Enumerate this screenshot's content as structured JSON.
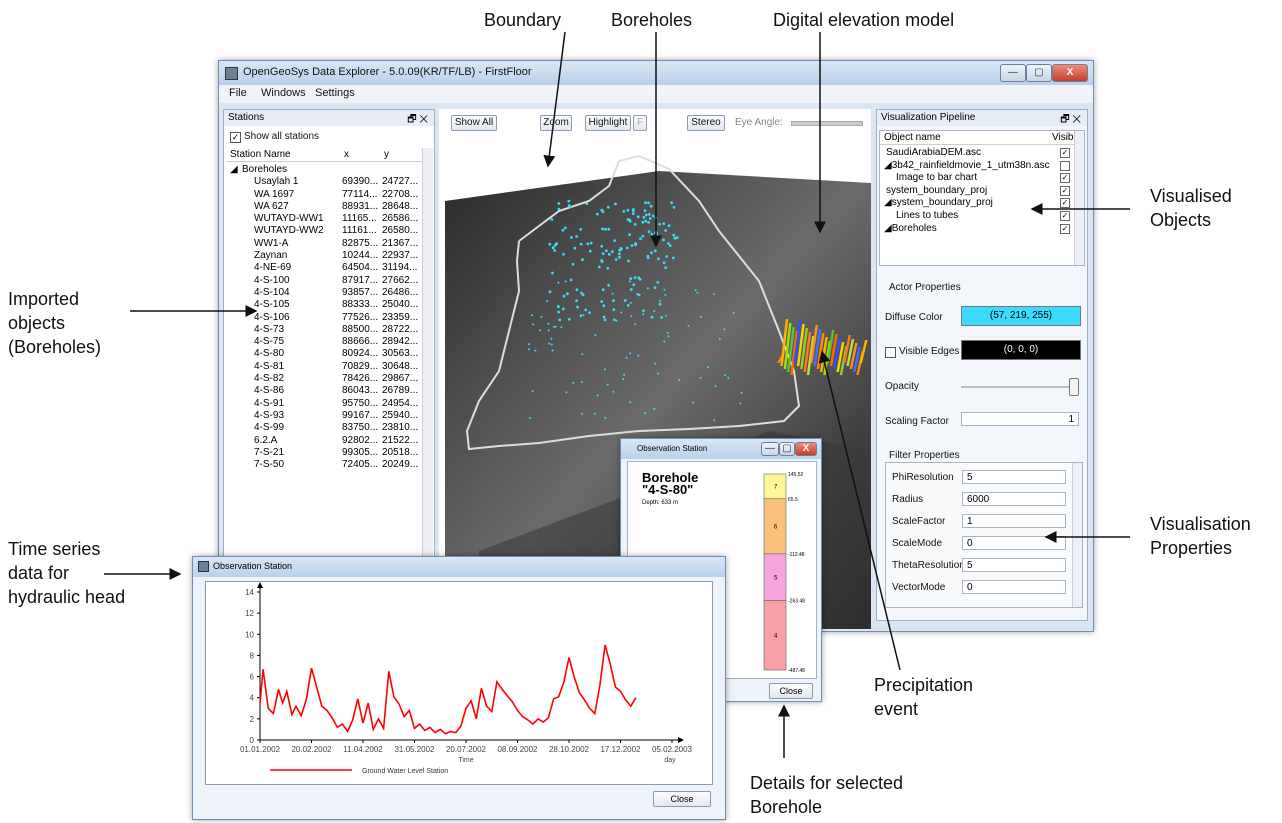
{
  "callouts": {
    "boundary": "Boundary",
    "boreholes": "Boreholes",
    "dem": "Digital elevation model",
    "imported": [
      "Imported",
      "objects",
      "(Boreholes)"
    ],
    "visualised": [
      "Visualised",
      "Objects"
    ],
    "timeseries": [
      "Time series",
      "data for",
      "hydraulic head"
    ],
    "vis_props": [
      "Visualisation",
      "Properties"
    ],
    "precip": [
      "Precipitation",
      "event"
    ],
    "details": [
      "Details for selected",
      "Borehole"
    ]
  },
  "window": {
    "title": "OpenGeoSys Data Explorer - 5.0.09(KR/TF/LB) - FirstFloor",
    "controls": [
      "—",
      "▢",
      "X"
    ],
    "menu": [
      "File",
      "Windows",
      "Settings"
    ]
  },
  "stations": {
    "title": "Stations",
    "title_icons": "🗗 ✕",
    "show_all": "Show all stations",
    "columns": [
      "Station Name",
      "x",
      "y"
    ],
    "group": "Boreholes",
    "rows": [
      [
        "Usaylah 1",
        "69390...",
        "24727..."
      ],
      [
        "WA 1697",
        "77114...",
        "22708..."
      ],
      [
        "WA 627",
        "88931...",
        "28648..."
      ],
      [
        "WUTAYD-WW1",
        "11165...",
        "26586..."
      ],
      [
        "WUTAYD-WW2",
        "11161...",
        "26580..."
      ],
      [
        "WW1-A",
        "82875...",
        "21367..."
      ],
      [
        "Zaynan",
        "10244...",
        "22937..."
      ],
      [
        "4-NE-69",
        "64504...",
        "31194..."
      ],
      [
        "4-S-100",
        "87917...",
        "27662..."
      ],
      [
        "4-S-104",
        "93857...",
        "26486..."
      ],
      [
        "4-S-105",
        "88333...",
        "25040..."
      ],
      [
        "4-S-106",
        "77526...",
        "23359..."
      ],
      [
        "4-S-73",
        "88500...",
        "28722..."
      ],
      [
        "4-S-75",
        "88666...",
        "28942..."
      ],
      [
        "4-S-80",
        "80924...",
        "30563..."
      ],
      [
        "4-S-81",
        "70829...",
        "30648..."
      ],
      [
        "4-S-82",
        "78426...",
        "29867..."
      ],
      [
        "4-S-86",
        "86043...",
        "26789..."
      ],
      [
        "4-S-91",
        "95750...",
        "24954..."
      ],
      [
        "4-S-93",
        "99167...",
        "25940..."
      ],
      [
        "4-S-99",
        "83750...",
        "23810..."
      ],
      [
        "6.2.A",
        "92802...",
        "21522..."
      ],
      [
        "7-S-21",
        "99305...",
        "20518..."
      ],
      [
        "7-S-50",
        "72405...",
        "20249..."
      ]
    ]
  },
  "toolbar": {
    "show_all": "Show All",
    "zoom": "Zoom",
    "highlight": "Highlight",
    "f": "F",
    "stereo": "Stereo",
    "eye_angle": "Eye Angle:"
  },
  "pipeline": {
    "title": "Visualization Pipeline",
    "title_icons": "🗗 ✕",
    "col_name": "Object name",
    "col_visible": "Visib",
    "objects": [
      "SaudiArabiaDEM.asc",
      "◢3b42_rainfieldmovie_1_utm38n.asc",
      "Image to bar chart",
      "system_boundary_proj",
      "◢system_boundary_proj",
      "Lines to tubes",
      "◢Boreholes"
    ],
    "actor_props": "Actor Properties",
    "diffuse_label": "Diffuse Color",
    "diffuse_value": "(57, 219, 255)",
    "diffuse_color": "#39dbff",
    "edges_label": "Visible Edges",
    "edges_value": "(0, 0, 0)",
    "opacity_label": "Opacity",
    "scaling_label": "Scaling Factor",
    "scaling_value": "1",
    "filter_props": "Filter Properties",
    "filters": [
      {
        "name": "PhiResolution",
        "value": "5"
      },
      {
        "name": "Radius",
        "value": "6000"
      },
      {
        "name": "ScaleFactor",
        "value": "1"
      },
      {
        "name": "ScaleMode",
        "value": "0"
      },
      {
        "name": "ThetaResolution",
        "value": "5"
      },
      {
        "name": "VectorMode",
        "value": "0"
      }
    ]
  },
  "borehole_window": {
    "title": "Observation Station",
    "name": "Borehole",
    "id": "\"4-S-80\"",
    "depth": "Depth: 633 m",
    "layers": [
      {
        "label": "7",
        "color": "#fdf79a"
      },
      {
        "label": "6",
        "color": "#f9c17c"
      },
      {
        "label": "5",
        "color": "#f4a6dc"
      },
      {
        "label": "4",
        "color": "#f7a0a6"
      }
    ],
    "depths": [
      "145.52",
      "65.5",
      "-112.48",
      "-263.48",
      "-487.48"
    ],
    "close": "Close"
  },
  "obs_window": {
    "title": "Observation Station",
    "close": "Close"
  },
  "chart_data": {
    "type": "line",
    "title": "",
    "xlabel": "Time",
    "x_unit": "day",
    "ylabel": "",
    "ylim": [
      0,
      14
    ],
    "y_ticks": [
      "0",
      "2",
      "4",
      "6",
      "8",
      "10",
      "12",
      "14"
    ],
    "x_ticks": [
      "01.01.2002",
      "20.02.2002",
      "11.04.2002",
      "31.05.2002",
      "20.07.2002",
      "08.09.2002",
      "28.10.2002",
      "17.12.2002",
      "05.02.2003"
    ],
    "xlim": [
      "2002-01-01",
      "2003-02-05"
    ],
    "legend": "Ground Water Level Station",
    "color": "#ff0000",
    "series": [
      {
        "x": [
          "2002-01-01",
          "2002-01-04",
          "2002-01-09",
          "2002-01-14",
          "2002-01-19",
          "2002-01-23",
          "2002-01-27",
          "2002-02-01",
          "2002-02-05",
          "2002-02-10",
          "2002-02-15",
          "2002-02-20",
          "2002-02-25",
          "2002-03-02",
          "2002-03-07",
          "2002-03-12",
          "2002-03-17",
          "2002-03-22",
          "2002-03-27",
          "2002-04-01",
          "2002-04-06",
          "2002-04-11",
          "2002-04-16",
          "2002-04-21",
          "2002-04-26",
          "2002-05-01",
          "2002-05-06",
          "2002-05-11",
          "2002-05-16",
          "2002-05-21",
          "2002-05-26",
          "2002-05-31",
          "2002-06-05",
          "2002-06-10",
          "2002-06-15",
          "2002-06-20",
          "2002-06-25",
          "2002-06-30",
          "2002-07-05",
          "2002-07-10",
          "2002-07-15",
          "2002-07-20",
          "2002-07-25",
          "2002-07-30",
          "2002-08-04",
          "2002-08-09",
          "2002-08-14",
          "2002-08-19",
          "2002-08-24",
          "2002-08-29",
          "2002-09-03",
          "2002-09-08",
          "2002-09-13",
          "2002-09-18",
          "2002-09-23",
          "2002-09-28",
          "2002-10-03",
          "2002-10-08",
          "2002-10-13",
          "2002-10-18",
          "2002-10-23",
          "2002-10-28",
          "2002-11-02",
          "2002-11-07",
          "2002-11-12",
          "2002-11-17",
          "2002-11-22",
          "2002-11-27",
          "2002-12-02",
          "2002-12-07",
          "2002-12-12",
          "2002-12-17",
          "2002-12-22",
          "2002-12-27",
          "2003-01-01"
        ],
        "y": [
          3.5,
          6.7,
          3.0,
          2.5,
          4.8,
          3.5,
          4.6,
          2.4,
          3.2,
          2.3,
          3.8,
          6.8,
          5.0,
          3.2,
          2.8,
          2.1,
          1.2,
          1.5,
          0.8,
          1.9,
          3.9,
          1.6,
          3.5,
          1.0,
          2.0,
          1.1,
          6.5,
          4.1,
          3.4,
          2.2,
          2.8,
          1.1,
          1.5,
          0.9,
          1.2,
          0.7,
          1.0,
          0.6,
          0.8,
          0.7,
          1.3,
          3.0,
          3.7,
          2.0,
          4.9,
          3.2,
          2.7,
          5.5,
          4.8,
          4.2,
          3.6,
          2.8,
          2.2,
          1.9,
          1.5,
          2.0,
          1.7,
          2.1,
          3.9,
          4.1,
          5.5,
          7.8,
          6.0,
          4.5,
          3.8,
          3.0,
          2.5,
          5.2,
          9.0,
          7.2,
          5.0,
          4.6,
          3.8,
          3.2,
          4.0
        ]
      }
    ]
  }
}
